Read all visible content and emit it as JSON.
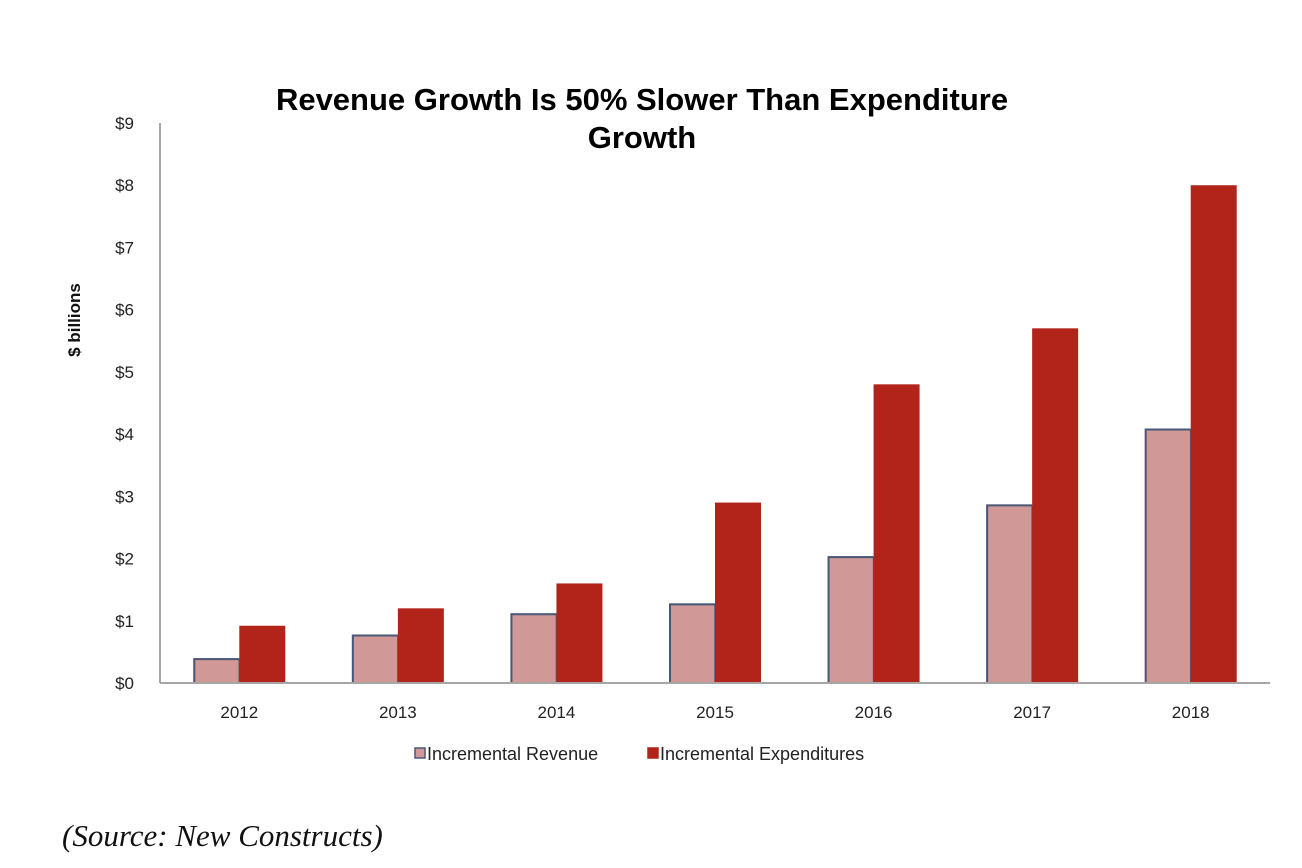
{
  "chart_data": {
    "type": "bar",
    "title": "Revenue Growth Is 50% Slower Than Expenditure Growth",
    "title_lines": [
      "Revenue Growth Is 50% Slower Than Expenditure",
      "Growth"
    ],
    "xlabel": "",
    "ylabel": "$ billions",
    "categories": [
      "2012",
      "2013",
      "2014",
      "2015",
      "2016",
      "2017",
      "2018"
    ],
    "series": [
      {
        "name": "Incremental Revenue",
        "color": "#d09896",
        "edge_color": "#4a5878",
        "values": [
          0.4,
          0.78,
          1.12,
          1.28,
          2.04,
          2.87,
          4.09
        ]
      },
      {
        "name": "Incremental Expenditures",
        "color": "#b22319",
        "edge_color": "#b22319",
        "values": [
          0.92,
          1.2,
          1.6,
          2.9,
          4.8,
          5.7,
          8.0
        ]
      }
    ],
    "ylim": [
      0,
      9
    ],
    "yticks": [
      0,
      1,
      2,
      3,
      4,
      5,
      6,
      7,
      8,
      9
    ],
    "ytick_labels": [
      "$0",
      "$1",
      "$2",
      "$3",
      "$4",
      "$5",
      "$6",
      "$7",
      "$8",
      "$9"
    ],
    "grid": false,
    "legend_position": "bottom-center",
    "axis_color": "#a6a6a6"
  },
  "source_note": "(Source: New Constructs)"
}
